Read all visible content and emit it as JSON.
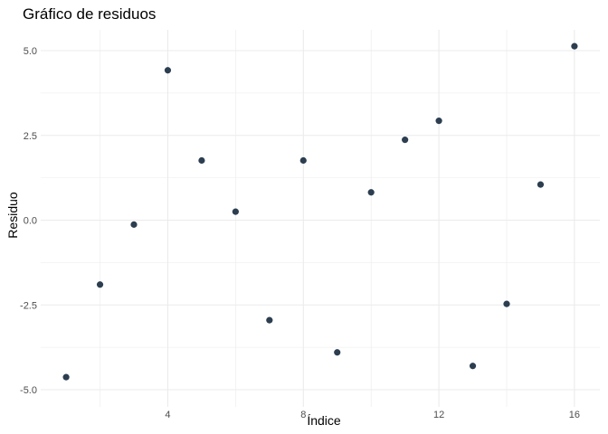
{
  "chart_data": {
    "type": "scatter",
    "title": "Gráfico de residuos",
    "xlabel": "Índice",
    "ylabel": "Residuo",
    "x": [
      1,
      2,
      3,
      4,
      5,
      6,
      7,
      8,
      9,
      10,
      11,
      12,
      13,
      14,
      15,
      16
    ],
    "y": [
      -4.63,
      -1.9,
      -0.13,
      4.42,
      1.76,
      0.25,
      -2.95,
      1.76,
      -3.9,
      0.82,
      2.37,
      2.93,
      -4.3,
      -2.47,
      1.05,
      5.13
    ],
    "xlim": [
      0.25,
      16.75
    ],
    "ylim": [
      -5.0,
      5.5
    ],
    "xticks": [
      4,
      8,
      12,
      16
    ],
    "xtick_labels": [
      "4",
      "8",
      "12",
      "16"
    ],
    "yticks": [
      -5.0,
      -2.5,
      0.0,
      2.5,
      5.0
    ],
    "ytick_labels": [
      "-5.0",
      "-2.5",
      "0.0",
      "2.5",
      "5.0"
    ],
    "grid": true,
    "legend": "none",
    "point_color": "#2c3e50",
    "grid_color": "#ebebeb"
  }
}
